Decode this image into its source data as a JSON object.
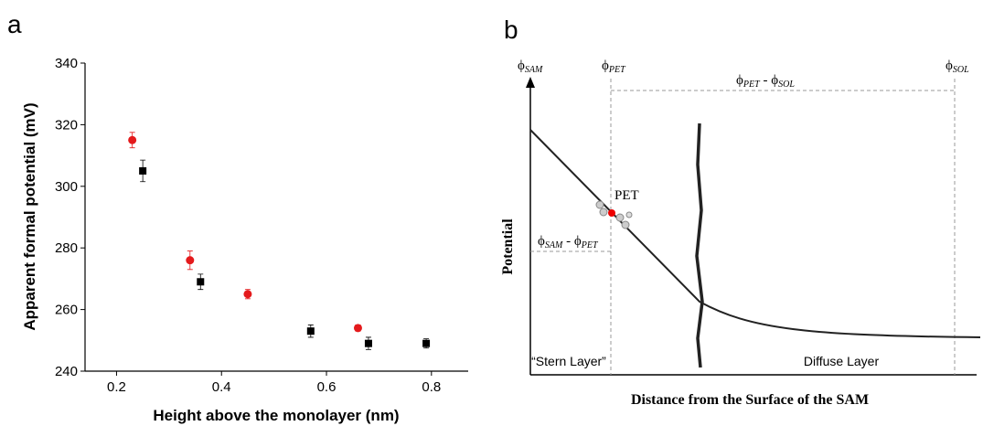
{
  "panel_labels": [
    "a",
    "b"
  ],
  "chart_data": {
    "type": "scatter",
    "xlabel": "Height above the monolayer (nm)",
    "ylabel": "Apparent formal potential (mV)",
    "xlim": [
      0.14,
      0.87
    ],
    "xticks": [
      0.2,
      0.4,
      0.6,
      0.8
    ],
    "ylim": [
      240,
      340
    ],
    "yticks": [
      240,
      260,
      280,
      300,
      320,
      340
    ],
    "series": [
      {
        "color": "#e41a1c",
        "marker": "circle",
        "x": [
          0.23,
          0.34,
          0.45,
          0.66
        ],
        "values": [
          315,
          276,
          265,
          254
        ],
        "errors": [
          2.5,
          3,
          1.5,
          1
        ]
      },
      {
        "color": "#000000",
        "marker": "square",
        "x": [
          0.25,
          0.36,
          0.57,
          0.68,
          0.79
        ],
        "values": [
          305,
          269,
          253,
          249,
          249
        ],
        "errors": [
          3.5,
          2.5,
          2,
          2,
          1.5
        ]
      }
    ]
  },
  "diagram": {
    "phi_sam": [
      "ϕ",
      "SAM"
    ],
    "phi_pet": [
      "ϕ",
      "PET"
    ],
    "phi_sol": [
      "ϕ",
      "SOL"
    ],
    "phi_pet_sol": [
      "ϕ",
      "PET",
      " - ",
      "ϕ",
      "SOL"
    ],
    "phi_sam_pet": [
      "ϕ",
      "SAM",
      " - ",
      "ϕ",
      "PET"
    ],
    "pet": "PET",
    "y_axis": "Potential",
    "x_axis": "Distance from the Surface of the SAM",
    "stern": "“Stern Layer”",
    "diffuse": "Diffuse Layer"
  }
}
